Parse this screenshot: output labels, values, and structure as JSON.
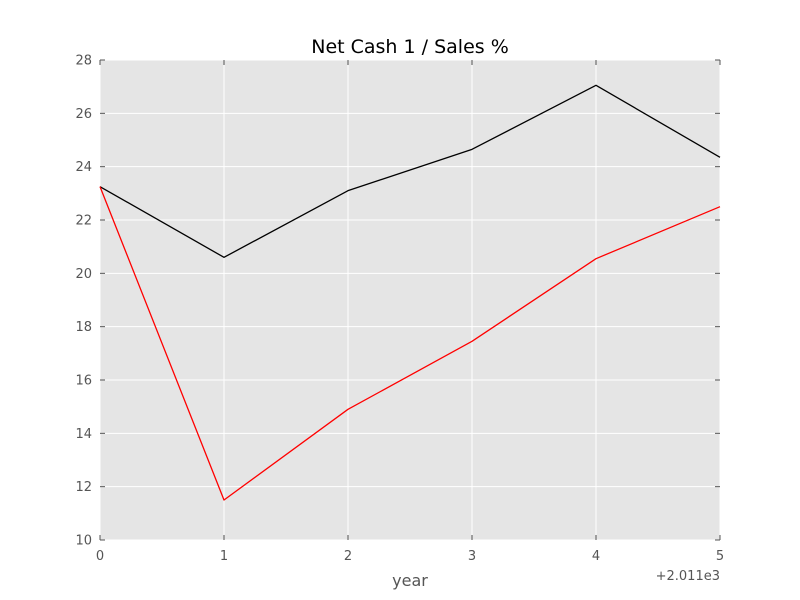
{
  "chart_data": {
    "type": "line",
    "title": "Net Cash 1 / Sales %",
    "xlabel": "year",
    "ylabel": "",
    "x_offset_label": "+2.011e3",
    "x": [
      0,
      1,
      2,
      3,
      4,
      5
    ],
    "xlim": [
      0,
      5
    ],
    "ylim": [
      10,
      28
    ],
    "xticks": [
      0,
      1,
      2,
      3,
      4,
      5
    ],
    "yticks": [
      10,
      12,
      14,
      16,
      18,
      20,
      22,
      24,
      26,
      28
    ],
    "grid": true,
    "background": "#e5e5e5",
    "series": [
      {
        "color": "#000000",
        "values": [
          23.25,
          20.6,
          23.1,
          24.65,
          27.05,
          24.35
        ]
      },
      {
        "color": "#ff0000",
        "values": [
          23.25,
          11.5,
          14.9,
          17.45,
          20.55,
          22.5
        ]
      }
    ]
  }
}
